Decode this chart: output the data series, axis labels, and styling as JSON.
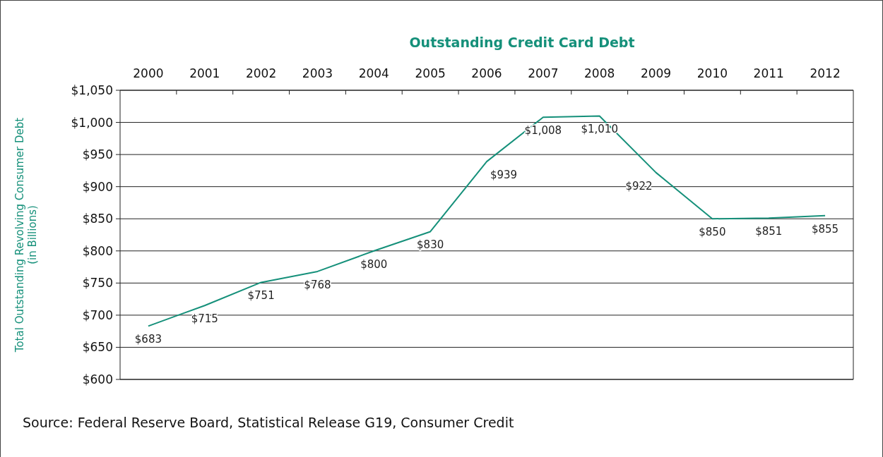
{
  "chart_data": {
    "type": "line",
    "title": "Outstanding Credit Card Debt",
    "ylabel": "Total Outstanding Revolving Consumer Debt\n(in Billions)",
    "categories": [
      "2000",
      "2001",
      "2002",
      "2003",
      "2004",
      "2005",
      "2006",
      "2007",
      "2008",
      "2009",
      "2010",
      "2011",
      "2012"
    ],
    "series": [
      {
        "color": "#15907a",
        "values": [
          683,
          715,
          751,
          768,
          800,
          830,
          939,
          1008,
          1010,
          922,
          850,
          851,
          855
        ],
        "value_labels": [
          "$683",
          "$715",
          "$751",
          "$768",
          "$800",
          "$830",
          "$939",
          "$1,008",
          "$1,010",
          "$922",
          "$850",
          "$851",
          "$855"
        ]
      }
    ],
    "ylim": [
      600,
      1050
    ],
    "yticks": [
      {
        "value": 600,
        "label": "$600"
      },
      {
        "value": 650,
        "label": "$650"
      },
      {
        "value": 700,
        "label": "$700"
      },
      {
        "value": 750,
        "label": "$750"
      },
      {
        "value": 800,
        "label": "$800"
      },
      {
        "value": 850,
        "label": "$850"
      },
      {
        "value": 900,
        "label": "$900"
      },
      {
        "value": 950,
        "label": "$950"
      },
      {
        "value": 1000,
        "label": "$1,000"
      },
      {
        "value": 1050,
        "label": "$1,050"
      }
    ],
    "grid": "y",
    "marker": "none",
    "line_style": "solid",
    "annotations": [
      "Source: Federal Reserve Board, Statistical Release G19, Consumer Credit"
    ]
  }
}
